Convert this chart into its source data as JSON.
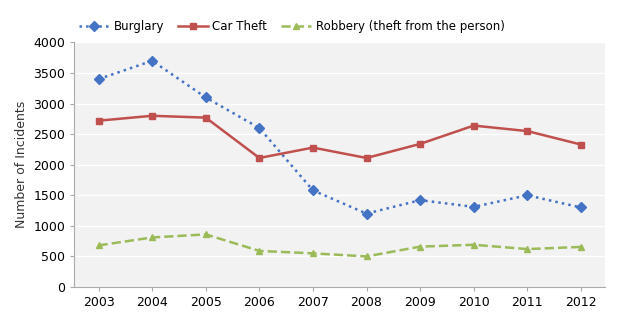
{
  "years": [
    2003,
    2004,
    2005,
    2006,
    2007,
    2008,
    2009,
    2010,
    2011,
    2012
  ],
  "burglary": [
    3400,
    3700,
    3100,
    2600,
    1580,
    1200,
    1420,
    1310,
    1500,
    1300
  ],
  "car_theft": [
    2720,
    2800,
    2770,
    2110,
    2280,
    2110,
    2340,
    2640,
    2550,
    2330
  ],
  "robbery": [
    680,
    810,
    860,
    590,
    550,
    500,
    660,
    690,
    620,
    655
  ],
  "burglary_color": "#4472C4",
  "car_theft_color": "#C0504D",
  "robbery_color": "#9BBB59",
  "burglary_label": "Burglary",
  "car_theft_label": "Car Theft",
  "robbery_label": "Robbery (theft from the person)",
  "ylabel": "Number of Incidents",
  "ylim": [
    0,
    4000
  ],
  "yticks": [
    0,
    500,
    1000,
    1500,
    2000,
    2500,
    3000,
    3500,
    4000
  ],
  "background_color": "#ffffff",
  "plot_bg_color": "#f2f2f2",
  "grid_color": "#ffffff",
  "spine_color": "#aaaaaa",
  "tick_color": "#555555"
}
